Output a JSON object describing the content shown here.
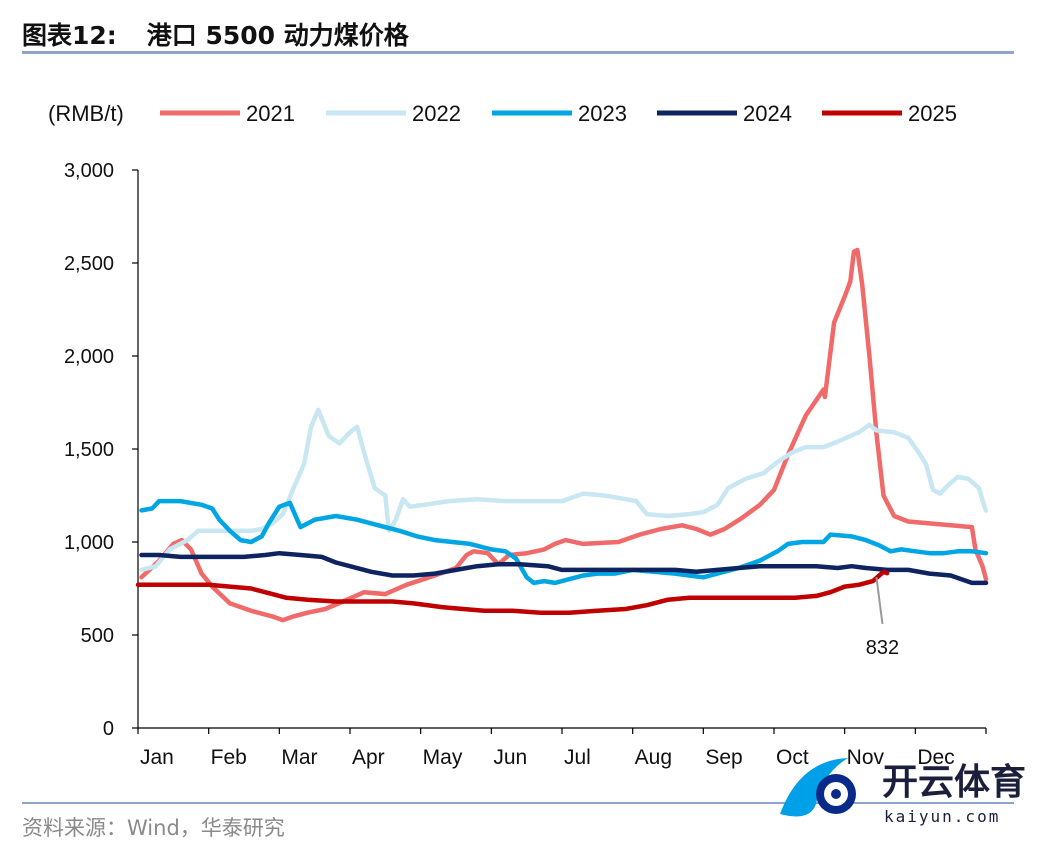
{
  "header": {
    "figure_label": "图表12:",
    "title": "港口 5500 动力煤价格"
  },
  "footer": {
    "source": "资料来源：Wind，华泰研究"
  },
  "watermark": {
    "name": "开云体育",
    "url": "kaiyun.com"
  },
  "chart_data": {
    "type": "line",
    "title": "港口 5500 动力煤价格",
    "ylabel": "(RMB/t)",
    "xlabel": "",
    "ylim": [
      0,
      3000
    ],
    "yticks": [
      0,
      500,
      1000,
      1500,
      2000,
      2500,
      3000
    ],
    "ytick_labels": [
      "0",
      "500",
      "1,000",
      "1,500",
      "2,000",
      "2,500",
      "3,000"
    ],
    "xlim": [
      0,
      12
    ],
    "categories": [
      "Jan",
      "Feb",
      "Mar",
      "Apr",
      "May",
      "Jun",
      "Jul",
      "Aug",
      "Sep",
      "Oct",
      "Nov",
      "Dec"
    ],
    "legend_position": "top",
    "annotation": {
      "label": "832",
      "series": "2025",
      "x": 10.45,
      "y": 832
    },
    "series": [
      {
        "name": "2021",
        "color": "#f06a6a",
        "points": [
          [
            0.05,
            810
          ],
          [
            0.3,
            900
          ],
          [
            0.5,
            990
          ],
          [
            0.62,
            1010
          ],
          [
            0.75,
            960
          ],
          [
            0.9,
            830
          ],
          [
            1.05,
            760
          ],
          [
            1.3,
            670
          ],
          [
            1.6,
            630
          ],
          [
            1.9,
            600
          ],
          [
            2.05,
            580
          ],
          [
            2.2,
            600
          ],
          [
            2.4,
            620
          ],
          [
            2.65,
            640
          ],
          [
            2.9,
            680
          ],
          [
            3.2,
            730
          ],
          [
            3.5,
            720
          ],
          [
            3.8,
            770
          ],
          [
            4.2,
            820
          ],
          [
            4.5,
            860
          ],
          [
            4.65,
            930
          ],
          [
            4.75,
            950
          ],
          [
            4.95,
            940
          ],
          [
            5.1,
            880
          ],
          [
            5.25,
            930
          ],
          [
            5.5,
            940
          ],
          [
            5.75,
            960
          ],
          [
            5.9,
            990
          ],
          [
            6.05,
            1010
          ],
          [
            6.3,
            990
          ],
          [
            6.8,
            1000
          ],
          [
            7.1,
            1040
          ],
          [
            7.4,
            1070
          ],
          [
            7.7,
            1090
          ],
          [
            7.9,
            1070
          ],
          [
            8.1,
            1040
          ],
          [
            8.3,
            1070
          ],
          [
            8.55,
            1130
          ],
          [
            8.8,
            1200
          ],
          [
            9.0,
            1280
          ],
          [
            9.2,
            1470
          ],
          [
            9.45,
            1680
          ],
          [
            9.7,
            1820
          ],
          [
            9.72,
            1780
          ],
          [
            9.85,
            2180
          ],
          [
            10.0,
            2320
          ],
          [
            10.08,
            2400
          ],
          [
            10.13,
            2560
          ],
          [
            10.18,
            2570
          ],
          [
            10.25,
            2380
          ],
          [
            10.35,
            2000
          ],
          [
            10.45,
            1580
          ],
          [
            10.55,
            1250
          ],
          [
            10.7,
            1140
          ],
          [
            10.9,
            1110
          ],
          [
            11.2,
            1100
          ],
          [
            11.5,
            1090
          ],
          [
            11.8,
            1080
          ],
          [
            11.85,
            960
          ],
          [
            11.95,
            870
          ],
          [
            12.0,
            800
          ]
        ]
      },
      {
        "name": "2022",
        "color": "#c9e6f3",
        "points": [
          [
            0.05,
            850
          ],
          [
            0.25,
            870
          ],
          [
            0.45,
            960
          ],
          [
            0.7,
            1010
          ],
          [
            0.85,
            1060
          ],
          [
            1.1,
            1060
          ],
          [
            1.4,
            1060
          ],
          [
            1.6,
            1060
          ],
          [
            1.75,
            1070
          ],
          [
            1.9,
            1100
          ],
          [
            2.05,
            1150
          ],
          [
            2.2,
            1290
          ],
          [
            2.35,
            1420
          ],
          [
            2.45,
            1620
          ],
          [
            2.55,
            1710
          ],
          [
            2.7,
            1570
          ],
          [
            2.85,
            1530
          ],
          [
            3.0,
            1590
          ],
          [
            3.1,
            1620
          ],
          [
            3.2,
            1480
          ],
          [
            3.35,
            1290
          ],
          [
            3.5,
            1250
          ],
          [
            3.55,
            1060
          ],
          [
            3.65,
            1120
          ],
          [
            3.75,
            1230
          ],
          [
            3.85,
            1190
          ],
          [
            4.05,
            1200
          ],
          [
            4.4,
            1220
          ],
          [
            4.8,
            1230
          ],
          [
            5.2,
            1220
          ],
          [
            6.0,
            1220
          ],
          [
            6.3,
            1260
          ],
          [
            6.6,
            1250
          ],
          [
            6.9,
            1230
          ],
          [
            7.05,
            1220
          ],
          [
            7.2,
            1150
          ],
          [
            7.5,
            1140
          ],
          [
            7.8,
            1150
          ],
          [
            8.0,
            1160
          ],
          [
            8.2,
            1200
          ],
          [
            8.35,
            1290
          ],
          [
            8.6,
            1340
          ],
          [
            8.85,
            1370
          ],
          [
            9.05,
            1430
          ],
          [
            9.25,
            1480
          ],
          [
            9.45,
            1510
          ],
          [
            9.7,
            1510
          ],
          [
            9.9,
            1540
          ],
          [
            10.2,
            1590
          ],
          [
            10.35,
            1630
          ],
          [
            10.45,
            1600
          ],
          [
            10.7,
            1590
          ],
          [
            10.9,
            1560
          ],
          [
            11.05,
            1480
          ],
          [
            11.15,
            1420
          ],
          [
            11.25,
            1280
          ],
          [
            11.35,
            1260
          ],
          [
            11.45,
            1300
          ],
          [
            11.6,
            1350
          ],
          [
            11.75,
            1340
          ],
          [
            11.9,
            1290
          ],
          [
            11.97,
            1200
          ],
          [
            12.0,
            1170
          ]
        ]
      },
      {
        "name": "2023",
        "color": "#00a6e3",
        "points": [
          [
            0.05,
            1170
          ],
          [
            0.2,
            1180
          ],
          [
            0.3,
            1220
          ],
          [
            0.6,
            1220
          ],
          [
            0.9,
            1200
          ],
          [
            1.05,
            1180
          ],
          [
            1.15,
            1120
          ],
          [
            1.3,
            1060
          ],
          [
            1.45,
            1010
          ],
          [
            1.6,
            1000
          ],
          [
            1.75,
            1030
          ],
          [
            1.85,
            1100
          ],
          [
            2.0,
            1190
          ],
          [
            2.15,
            1210
          ],
          [
            2.3,
            1080
          ],
          [
            2.5,
            1120
          ],
          [
            2.8,
            1140
          ],
          [
            3.1,
            1120
          ],
          [
            3.4,
            1090
          ],
          [
            3.7,
            1060
          ],
          [
            3.95,
            1030
          ],
          [
            4.2,
            1010
          ],
          [
            4.45,
            1000
          ],
          [
            4.7,
            990
          ],
          [
            5.0,
            960
          ],
          [
            5.2,
            950
          ],
          [
            5.35,
            910
          ],
          [
            5.5,
            810
          ],
          [
            5.6,
            780
          ],
          [
            5.75,
            790
          ],
          [
            5.9,
            780
          ],
          [
            6.1,
            800
          ],
          [
            6.3,
            820
          ],
          [
            6.5,
            830
          ],
          [
            6.75,
            830
          ],
          [
            7.0,
            850
          ],
          [
            7.3,
            840
          ],
          [
            7.6,
            830
          ],
          [
            7.8,
            820
          ],
          [
            8.0,
            810
          ],
          [
            8.2,
            830
          ],
          [
            8.5,
            860
          ],
          [
            8.8,
            900
          ],
          [
            9.05,
            950
          ],
          [
            9.2,
            990
          ],
          [
            9.4,
            1000
          ],
          [
            9.7,
            1000
          ],
          [
            9.8,
            1040
          ],
          [
            10.1,
            1030
          ],
          [
            10.3,
            1010
          ],
          [
            10.5,
            980
          ],
          [
            10.65,
            950
          ],
          [
            10.8,
            960
          ],
          [
            11.0,
            950
          ],
          [
            11.2,
            940
          ],
          [
            11.4,
            940
          ],
          [
            11.6,
            950
          ],
          [
            11.8,
            950
          ],
          [
            12.0,
            940
          ]
        ]
      },
      {
        "name": "2024",
        "color": "#0d2461",
        "points": [
          [
            0.05,
            930
          ],
          [
            0.3,
            930
          ],
          [
            0.6,
            920
          ],
          [
            1.0,
            920
          ],
          [
            1.5,
            920
          ],
          [
            1.8,
            930
          ],
          [
            2.0,
            940
          ],
          [
            2.3,
            930
          ],
          [
            2.6,
            920
          ],
          [
            2.8,
            890
          ],
          [
            3.0,
            870
          ],
          [
            3.3,
            840
          ],
          [
            3.6,
            820
          ],
          [
            3.9,
            820
          ],
          [
            4.2,
            830
          ],
          [
            4.5,
            850
          ],
          [
            4.8,
            870
          ],
          [
            5.1,
            880
          ],
          [
            5.4,
            880
          ],
          [
            5.8,
            870
          ],
          [
            6.0,
            850
          ],
          [
            6.3,
            850
          ],
          [
            6.8,
            850
          ],
          [
            7.2,
            850
          ],
          [
            7.6,
            850
          ],
          [
            7.9,
            840
          ],
          [
            8.2,
            850
          ],
          [
            8.5,
            860
          ],
          [
            8.8,
            870
          ],
          [
            9.2,
            870
          ],
          [
            9.6,
            870
          ],
          [
            9.9,
            860
          ],
          [
            10.1,
            870
          ],
          [
            10.3,
            860
          ],
          [
            10.6,
            850
          ],
          [
            10.9,
            850
          ],
          [
            11.2,
            830
          ],
          [
            11.5,
            820
          ],
          [
            11.8,
            780
          ],
          [
            12.0,
            780
          ]
        ]
      },
      {
        "name": "2025",
        "color": "#c00000",
        "points": [
          [
            0.0,
            770
          ],
          [
            0.5,
            770
          ],
          [
            1.0,
            770
          ],
          [
            1.3,
            760
          ],
          [
            1.6,
            750
          ],
          [
            1.9,
            720
          ],
          [
            2.1,
            700
          ],
          [
            2.4,
            690
          ],
          [
            2.8,
            680
          ],
          [
            3.2,
            680
          ],
          [
            3.6,
            680
          ],
          [
            3.9,
            670
          ],
          [
            4.3,
            650
          ],
          [
            4.6,
            640
          ],
          [
            4.9,
            630
          ],
          [
            5.3,
            630
          ],
          [
            5.7,
            620
          ],
          [
            6.1,
            620
          ],
          [
            6.5,
            630
          ],
          [
            6.9,
            640
          ],
          [
            7.2,
            660
          ],
          [
            7.5,
            690
          ],
          [
            7.8,
            700
          ],
          [
            8.1,
            700
          ],
          [
            8.4,
            700
          ],
          [
            8.7,
            700
          ],
          [
            9.0,
            700
          ],
          [
            9.3,
            700
          ],
          [
            9.6,
            710
          ],
          [
            9.8,
            730
          ],
          [
            10.0,
            760
          ],
          [
            10.2,
            770
          ],
          [
            10.4,
            790
          ],
          [
            10.55,
            840
          ],
          [
            10.6,
            832
          ]
        ]
      }
    ]
  }
}
